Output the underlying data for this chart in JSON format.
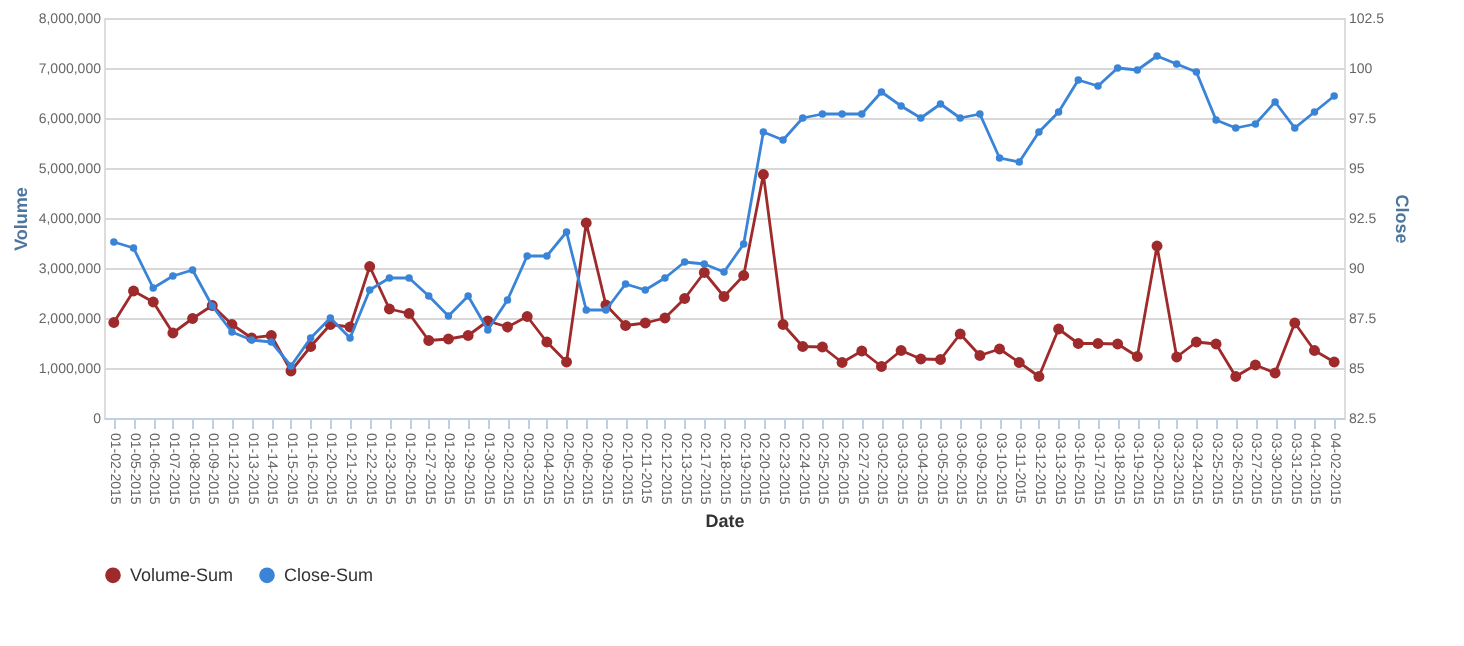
{
  "chart_data": {
    "type": "line",
    "xlabel": "Date",
    "ylabel": "Volume",
    "y2label": "Close",
    "categories": [
      "01-02-2015",
      "01-05-2015",
      "01-06-2015",
      "01-07-2015",
      "01-08-2015",
      "01-09-2015",
      "01-12-2015",
      "01-13-2015",
      "01-14-2015",
      "01-15-2015",
      "01-16-2015",
      "01-20-2015",
      "01-21-2015",
      "01-22-2015",
      "01-23-2015",
      "01-26-2015",
      "01-27-2015",
      "01-28-2015",
      "01-29-2015",
      "01-30-2015",
      "02-02-2015",
      "02-03-2015",
      "02-04-2015",
      "02-05-2015",
      "02-06-2015",
      "02-09-2015",
      "02-10-2015",
      "02-11-2015",
      "02-12-2015",
      "02-13-2015",
      "02-17-2015",
      "02-18-2015",
      "02-19-2015",
      "02-20-2015",
      "02-23-2015",
      "02-24-2015",
      "02-25-2015",
      "02-26-2015",
      "02-27-2015",
      "03-02-2015",
      "03-03-2015",
      "03-04-2015",
      "03-05-2015",
      "03-06-2015",
      "03-09-2015",
      "03-10-2015",
      "03-11-2015",
      "03-12-2015",
      "03-13-2015",
      "03-16-2015",
      "03-17-2015",
      "03-18-2015",
      "03-19-2015",
      "03-20-2015",
      "03-23-2015",
      "03-24-2015",
      "03-25-2015",
      "03-26-2015",
      "03-27-2015",
      "03-30-2015",
      "03-31-2015",
      "04-01-2015",
      "04-02-2015"
    ],
    "series": [
      {
        "name": "Volume-Sum",
        "color": "#9e2a2b",
        "values": [
          1910000,
          2540000,
          2320000,
          1700000,
          1990000,
          2250000,
          1870000,
          1600000,
          1650000,
          940000,
          1430000,
          1870000,
          1820000,
          3030000,
          2180000,
          2090000,
          1550000,
          1580000,
          1650000,
          1940000,
          1820000,
          2030000,
          1520000,
          1120000,
          3900000,
          2260000,
          1850000,
          1900000,
          2000000,
          2390000,
          2910000,
          2430000,
          2850000,
          4870000,
          1870000,
          1430000,
          1420000,
          1110000,
          1340000,
          1030000,
          1350000,
          1180000,
          1170000,
          1680000,
          1250000,
          1380000,
          1110000,
          830000,
          1780000,
          1490000,
          1490000,
          1480000,
          1230000,
          3440000,
          1220000,
          1520000,
          1480000,
          830000,
          1060000,
          900000,
          1900000,
          1350000,
          1120000
        ]
      },
      {
        "name": "Close-Sum",
        "color": "#3a84d8",
        "axis": "y2",
        "values": [
          91.3,
          91.0,
          89.0,
          89.6,
          89.9,
          88.1,
          86.8,
          86.4,
          86.3,
          85.1,
          86.5,
          87.5,
          86.5,
          88.9,
          89.5,
          89.5,
          88.6,
          87.6,
          88.6,
          86.9,
          88.4,
          90.6,
          90.6,
          91.8,
          87.9,
          87.9,
          89.2,
          88.9,
          89.5,
          90.3,
          90.2,
          89.8,
          91.2,
          96.8,
          96.4,
          97.5,
          97.7,
          97.7,
          97.7,
          98.8,
          98.1,
          97.5,
          98.2,
          97.5,
          97.7,
          95.5,
          95.3,
          96.8,
          97.8,
          99.4,
          99.1,
          100.0,
          99.9,
          100.6,
          100.2,
          99.8,
          97.4,
          97.0,
          97.2,
          98.3,
          97.0,
          97.8,
          98.6
        ]
      }
    ],
    "ylim": [
      0,
      8000000
    ],
    "yticks": [
      0,
      {
        "value": 1000000,
        "label": "1,000,000"
      },
      {
        "value": 2000000,
        "label": "2,000,000"
      },
      {
        "value": 3000000,
        "label": "3,000,000"
      },
      {
        "value": 4000000,
        "label": "4,000,000"
      },
      {
        "value": 5000000,
        "label": "5,000,000"
      },
      {
        "value": 6000000,
        "label": "6,000,000"
      },
      {
        "value": 7000000,
        "label": "7,000,000"
      },
      {
        "value": 8000000,
        "label": "8,000,000"
      }
    ],
    "y2lim": [
      82.5,
      102.5
    ],
    "y2ticks": [
      82.5,
      85,
      87.5,
      90,
      92.5,
      95,
      97.5,
      100,
      102.5
    ],
    "grid": "y",
    "legend": "bottom",
    "marker": "circle",
    "line_style": "solid"
  }
}
